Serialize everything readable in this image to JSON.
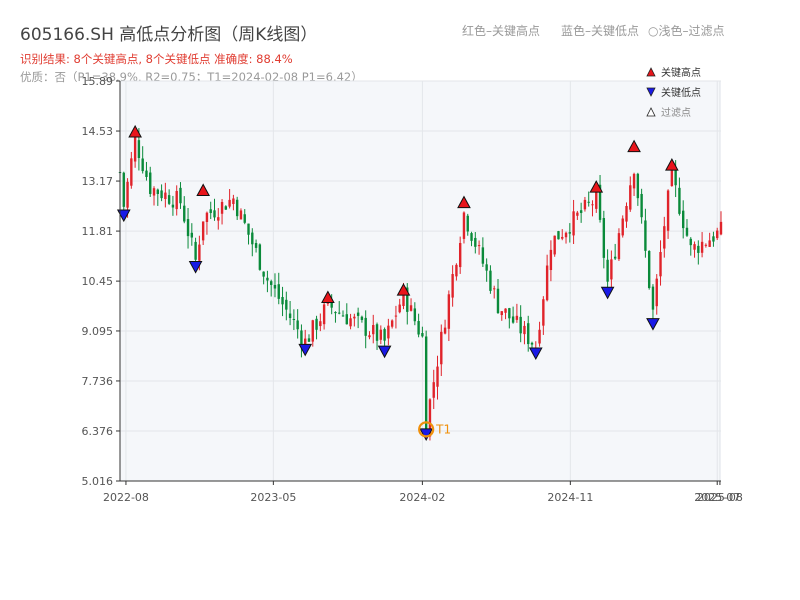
{
  "title": "605166.SH 高低点分析图（周K线图）",
  "subtitle_result": "识别结果: 8个关键高点, 8个关键低点   准确度: 88.4%",
  "subtitle_quality": "优质：否（P1=38.9%, R2=0.75；T1=2024-02-08 P1=6.42）",
  "top_hints": [
    "红色–关键高点",
    "蓝色–关键低点",
    "浅色–过滤点"
  ],
  "colors": {
    "up": "#e0232a",
    "down": "#0a8a3a",
    "high_marker": "#e8151b",
    "low_marker": "#1a1ae6",
    "t1": "#f0900b",
    "plot_bg": "#f5f7fa",
    "grid": "#e3e6ea"
  },
  "chart_data": {
    "type": "candlestick",
    "title": "605166.SH 高低点分析图（周K线图）",
    "ylim": [
      5.016,
      15.89
    ],
    "y_ticks": [
      5.016,
      6.376,
      7.736,
      9.095,
      10.45,
      11.81,
      13.17,
      14.53,
      15.89
    ],
    "y_tick_labels": [
      "5.016",
      "6.376",
      "7.736",
      "9.095",
      "10.45",
      "11.81",
      "13.17",
      "14.53",
      "15.89"
    ],
    "x_range": [
      "2022-07-21",
      "2025-08-07"
    ],
    "x_ticks": [
      "2022-08-01",
      "2023-05-01",
      "2024-02-01",
      "2024-11-01",
      "2025-07-31",
      "2025-08-05"
    ],
    "x_tick_labels": [
      "2022-08",
      "2023-05",
      "2024-02",
      "2024-11",
      "2025-07",
      "2025-08"
    ],
    "grid": true,
    "legend": {
      "placement": "top-right",
      "entries": [
        {
          "label": "关键高点",
          "marker": "triangle-up",
          "color": "#e8151b"
        },
        {
          "label": "关键低点",
          "marker": "triangle-down",
          "color": "#1a1ae6"
        },
        {
          "label": "过滤点",
          "marker": "triangle-up-hollow",
          "color": "#333333"
        }
      ]
    },
    "anchors": [
      [
        "2022-07-21",
        13.4
      ],
      [
        "2022-07-28",
        12.5
      ],
      [
        "2022-08-18",
        14.3
      ],
      [
        "2022-09-15",
        13.0
      ],
      [
        "2022-11-10",
        12.6
      ],
      [
        "2022-12-08",
        11.0
      ],
      [
        "2022-12-22",
        12.2
      ],
      [
        "2023-02-16",
        12.7
      ],
      [
        "2023-04-20",
        10.5
      ],
      [
        "2023-06-29",
        8.8
      ],
      [
        "2023-08-10",
        9.8
      ],
      [
        "2023-10-26",
        9.1
      ],
      [
        "2023-11-23",
        8.8
      ],
      [
        "2023-12-28",
        10.1
      ],
      [
        "2024-02-01",
        8.9
      ],
      [
        "2024-02-08",
        6.6
      ],
      [
        "2024-04-18",
        12.3
      ],
      [
        "2024-06-06",
        10.4
      ],
      [
        "2024-06-20",
        9.8
      ],
      [
        "2024-08-29",
        8.7
      ],
      [
        "2024-09-26",
        11.5
      ],
      [
        "2024-12-19",
        12.7
      ],
      [
        "2025-01-09",
        10.4
      ],
      [
        "2025-02-27",
        13.6
      ],
      [
        "2025-04-03",
        9.6
      ],
      [
        "2025-04-24",
        12.0
      ],
      [
        "2025-05-08",
        13.3
      ],
      [
        "2025-06-12",
        11.3
      ],
      [
        "2025-08-07",
        11.8
      ]
    ],
    "key_highs": [
      {
        "date": "2022-08-18",
        "value": 14.45
      },
      {
        "date": "2022-12-22",
        "value": 12.86
      },
      {
        "date": "2023-08-10",
        "value": 9.95
      },
      {
        "date": "2023-12-28",
        "value": 10.15
      },
      {
        "date": "2024-04-18",
        "value": 12.53
      },
      {
        "date": "2024-12-19",
        "value": 12.95
      },
      {
        "date": "2025-02-27",
        "value": 14.05
      },
      {
        "date": "2025-05-08",
        "value": 13.55
      }
    ],
    "key_lows": [
      {
        "date": "2022-07-28",
        "value": 12.3
      },
      {
        "date": "2022-12-08",
        "value": 10.9
      },
      {
        "date": "2023-06-29",
        "value": 8.65
      },
      {
        "date": "2023-11-23",
        "value": 8.6
      },
      {
        "date": "2024-02-08",
        "value": 6.35
      },
      {
        "date": "2024-08-29",
        "value": 8.55
      },
      {
        "date": "2025-01-09",
        "value": 10.2
      },
      {
        "date": "2025-04-03",
        "value": 9.35
      }
    ],
    "t1": {
      "label": "T1",
      "date": "2024-02-08",
      "value": 6.42
    }
  }
}
